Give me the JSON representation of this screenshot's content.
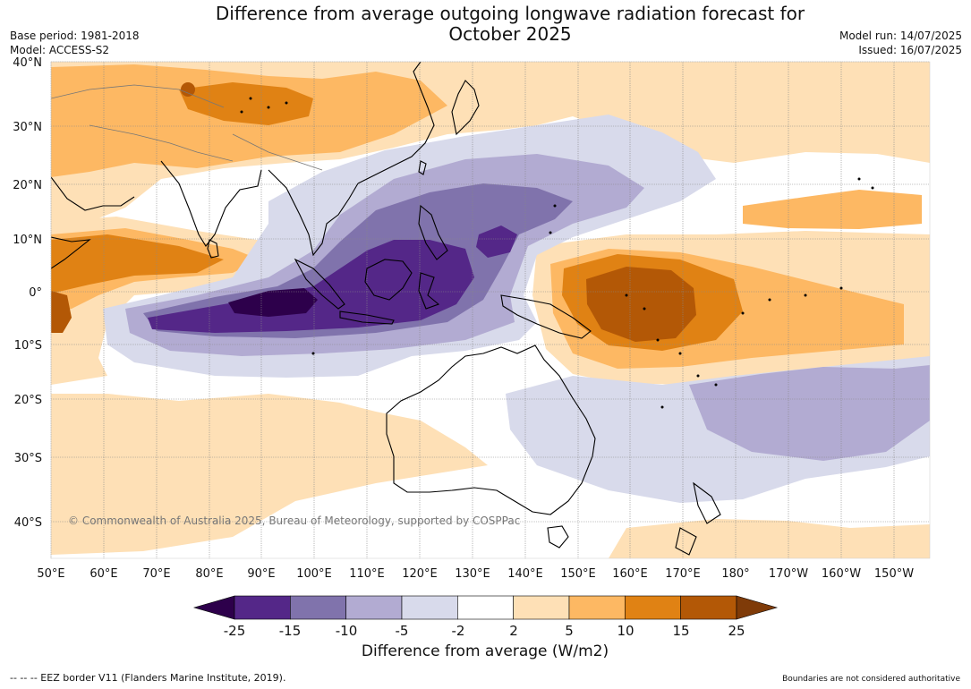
{
  "header": {
    "title_line1": "Difference from average outgoing longwave radiation forecast for",
    "title_line2": "October 2025",
    "base_period": "Base period: 1981-2018",
    "model": "Model: ACCESS-S2",
    "model_run": "Model run: 14/07/2025",
    "issued": "Issued: 16/07/2025"
  },
  "map": {
    "lon_labels": [
      "50°E",
      "60°E",
      "70°E",
      "80°E",
      "90°E",
      "100°E",
      "110°E",
      "120°E",
      "130°E",
      "140°E",
      "150°E",
      "160°E",
      "170°E",
      "180°",
      "170°W",
      "160°W",
      "150°W"
    ],
    "lat_labels": [
      "40°N",
      "30°N",
      "20°N",
      "10°N",
      "0°",
      "10°S",
      "20°S",
      "30°S",
      "40°S"
    ],
    "copyright": "© Commonwealth of Australia 2025, Bureau of Meteorology, supported by COSPPac",
    "land_color": "#000000",
    "gridline_color": "#888888"
  },
  "colorbar": {
    "ticks": [
      "-25",
      "-15",
      "-10",
      "-5",
      "-2",
      "2",
      "5",
      "10",
      "15",
      "25"
    ],
    "colors": [
      "#2d004b",
      "#542788",
      "#8073ac",
      "#b2abd2",
      "#d8daeb",
      "#ffffff",
      "#fee0b6",
      "#fdb863",
      "#e08214",
      "#b35806",
      "#7f3b08"
    ],
    "caption": "Difference from average (W/m2)"
  },
  "footer": {
    "eez_note": "--  --  -- EEZ border V11 (Flanders Marine Institute, 2019).",
    "boundaries_note": "Boundaries are not considered authoritative"
  }
}
